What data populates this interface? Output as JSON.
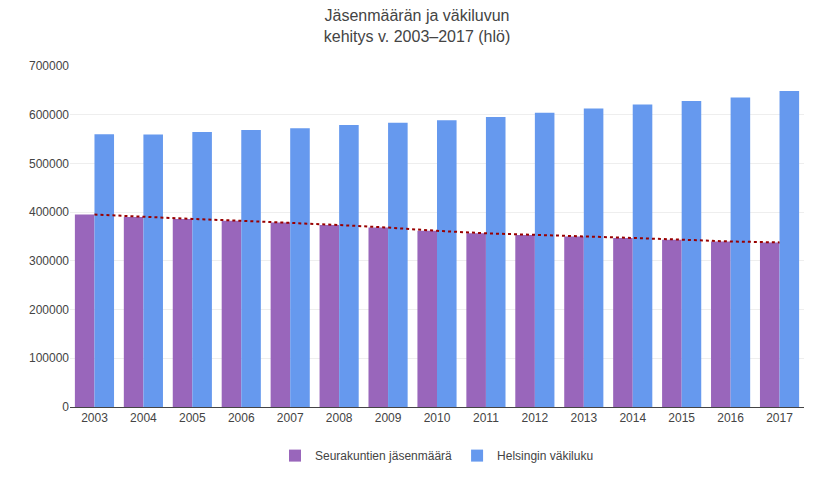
{
  "chart_data": {
    "type": "bar",
    "title": "Jäsenmäärän ja väkiluvun\nkehitys v. 2003–2017 (hlö)",
    "categories": [
      "2003",
      "2004",
      "2005",
      "2006",
      "2007",
      "2008",
      "2009",
      "2010",
      "2011",
      "2012",
      "2013",
      "2014",
      "2015",
      "2016",
      "2017"
    ],
    "series": [
      {
        "name": "Seurakuntien jäsenmäärä",
        "color": "#9966bb",
        "values": [
          395092,
          389942,
          386073,
          382251,
          378486,
          373588,
          368298,
          361635,
          356544,
          352879,
          349776,
          347004,
          343514,
          339741,
          337898
        ]
      },
      {
        "name": "Helsingin väkiluku",
        "color": "#6699ee",
        "values": [
          559718,
          559590,
          564521,
          568531,
          572082,
          578776,
          583350,
          588549,
          595384,
          603968,
          612664,
          620715,
          628208,
          635181,
          648650
        ]
      },
      {
        "type": "line",
        "color": "#990000",
        "line_style": "dotted",
        "values": [
          395092,
          389942,
          386073,
          382251,
          378486,
          373588,
          368298,
          361635,
          356544,
          352879,
          349776,
          347004,
          343514,
          339741,
          337898
        ]
      }
    ],
    "ylim": [
      0,
      700000
    ],
    "yticks": [
      0,
      100000,
      200000,
      300000,
      400000,
      500000,
      600000,
      700000
    ],
    "grid": true,
    "legend": "bottom"
  }
}
